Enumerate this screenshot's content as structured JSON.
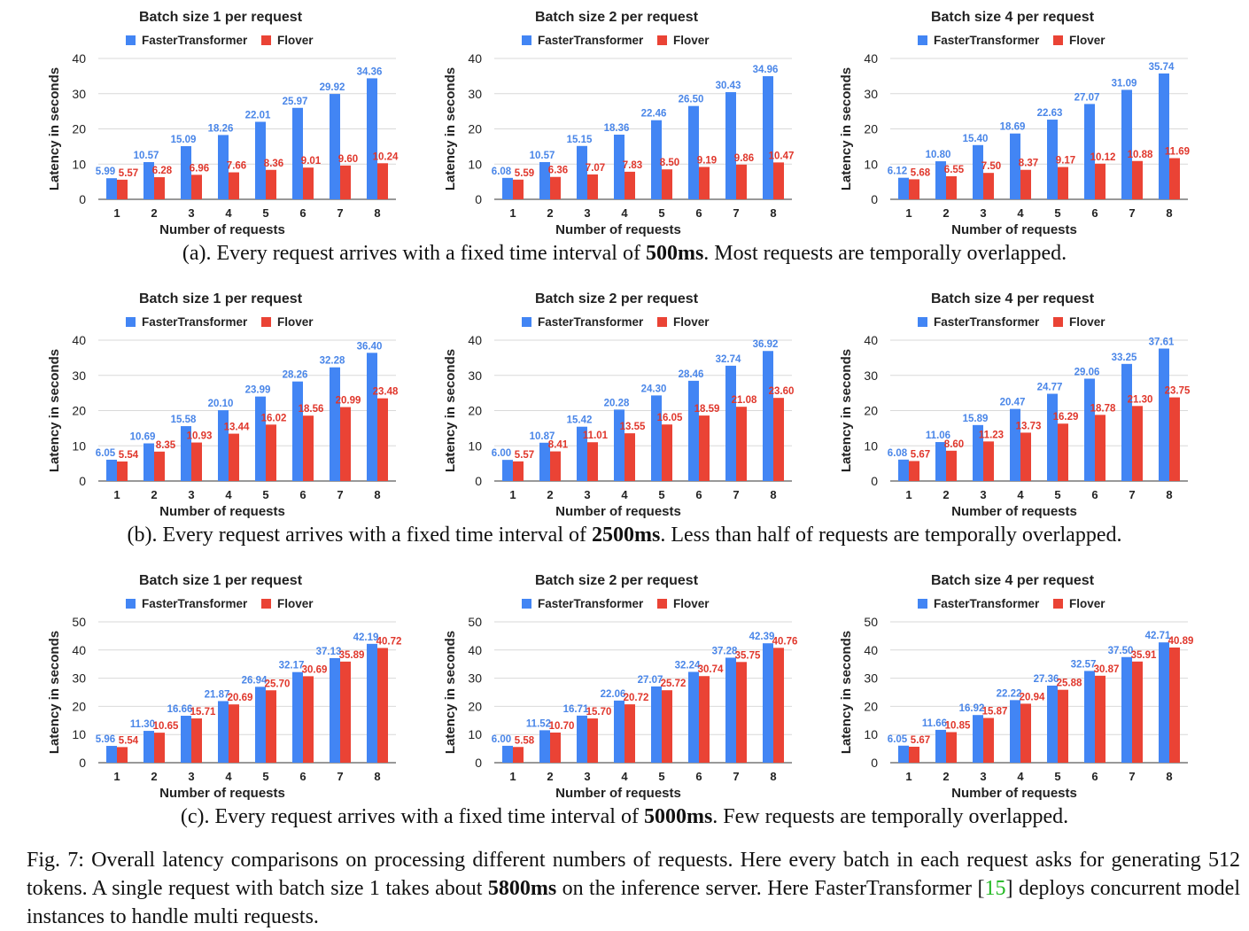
{
  "colors": {
    "fastertransformer": "#4285f4",
    "flover": "#ea4335",
    "grid": "#d9d9d9"
  },
  "legend": [
    "FasterTransformer",
    "Flover"
  ],
  "chart_data": [
    {
      "type": "bar",
      "row": "a",
      "title": "Batch size 1 per request",
      "xlabel": "Number of requests",
      "ylabel": "Latency in seconds",
      "ylim": [
        0,
        40
      ],
      "yticks": [
        0,
        10,
        20,
        30,
        40
      ],
      "categories": [
        "1",
        "2",
        "3",
        "4",
        "5",
        "6",
        "7",
        "8"
      ],
      "series": [
        {
          "name": "FasterTransformer",
          "values": [
            5.99,
            10.57,
            15.09,
            18.26,
            22.01,
            25.97,
            29.92,
            34.36
          ]
        },
        {
          "name": "Flover",
          "values": [
            5.57,
            6.28,
            6.96,
            7.66,
            8.36,
            9.01,
            9.6,
            10.24
          ]
        }
      ]
    },
    {
      "type": "bar",
      "row": "a",
      "title": "Batch size 2 per request",
      "xlabel": "Number of requests",
      "ylabel": "Latency in seconds",
      "ylim": [
        0,
        40
      ],
      "yticks": [
        0,
        10,
        20,
        30,
        40
      ],
      "categories": [
        "1",
        "2",
        "3",
        "4",
        "5",
        "6",
        "7",
        "8"
      ],
      "series": [
        {
          "name": "FasterTransformer",
          "values": [
            6.08,
            10.57,
            15.15,
            18.36,
            22.46,
            26.5,
            30.43,
            34.96
          ]
        },
        {
          "name": "Flover",
          "values": [
            5.59,
            6.36,
            7.07,
            7.83,
            8.5,
            9.19,
            9.86,
            10.47
          ]
        }
      ]
    },
    {
      "type": "bar",
      "row": "a",
      "title": "Batch size 4 per request",
      "xlabel": "Number of requests",
      "ylabel": "Latency in seconds",
      "ylim": [
        0,
        40
      ],
      "yticks": [
        0,
        10,
        20,
        30,
        40
      ],
      "categories": [
        "1",
        "2",
        "3",
        "4",
        "5",
        "6",
        "7",
        "8"
      ],
      "series": [
        {
          "name": "FasterTransformer",
          "values": [
            6.12,
            10.8,
            15.4,
            18.69,
            22.63,
            27.07,
            31.09,
            35.74
          ]
        },
        {
          "name": "Flover",
          "values": [
            5.68,
            6.55,
            7.5,
            8.37,
            9.17,
            10.12,
            10.88,
            11.69
          ]
        }
      ]
    },
    {
      "type": "bar",
      "row": "b",
      "title": "Batch size 1 per request",
      "xlabel": "Number of requests",
      "ylabel": "Latency in seconds",
      "ylim": [
        0,
        40
      ],
      "yticks": [
        0,
        10,
        20,
        30,
        40
      ],
      "categories": [
        "1",
        "2",
        "3",
        "4",
        "5",
        "6",
        "7",
        "8"
      ],
      "series": [
        {
          "name": "FasterTransformer",
          "values": [
            6.05,
            10.69,
            15.58,
            20.1,
            23.99,
            28.26,
            32.28,
            36.4
          ]
        },
        {
          "name": "Flover",
          "values": [
            5.54,
            8.35,
            10.93,
            13.44,
            16.02,
            18.56,
            20.99,
            23.48
          ]
        }
      ]
    },
    {
      "type": "bar",
      "row": "b",
      "title": "Batch size 2 per request",
      "xlabel": "Number of requests",
      "ylabel": "Latency in seconds",
      "ylim": [
        0,
        40
      ],
      "yticks": [
        0,
        10,
        20,
        30,
        40
      ],
      "categories": [
        "1",
        "2",
        "3",
        "4",
        "5",
        "6",
        "7",
        "8"
      ],
      "series": [
        {
          "name": "FasterTransformer",
          "values": [
            6.0,
            10.87,
            15.42,
            20.28,
            24.3,
            28.46,
            32.74,
            36.92
          ]
        },
        {
          "name": "Flover",
          "values": [
            5.57,
            8.41,
            11.01,
            13.55,
            16.05,
            18.59,
            21.08,
            23.6
          ]
        }
      ]
    },
    {
      "type": "bar",
      "row": "b",
      "title": "Batch size 4 per request",
      "xlabel": "Number of requests",
      "ylabel": "Latency in seconds",
      "ylim": [
        0,
        40
      ],
      "yticks": [
        0,
        10,
        20,
        30,
        40
      ],
      "categories": [
        "1",
        "2",
        "3",
        "4",
        "5",
        "6",
        "7",
        "8"
      ],
      "series": [
        {
          "name": "FasterTransformer",
          "values": [
            6.08,
            11.06,
            15.89,
            20.47,
            24.77,
            29.06,
            33.25,
            37.61
          ]
        },
        {
          "name": "Flover",
          "values": [
            5.67,
            8.6,
            11.23,
            13.73,
            16.29,
            18.78,
            21.3,
            23.75
          ]
        }
      ]
    },
    {
      "type": "bar",
      "row": "c",
      "title": "Batch size 1 per request",
      "xlabel": "Number of requests",
      "ylabel": "Latency in seconds",
      "ylim": [
        0,
        50
      ],
      "yticks": [
        0,
        10,
        20,
        30,
        40,
        50
      ],
      "categories": [
        "1",
        "2",
        "3",
        "4",
        "5",
        "6",
        "7",
        "8"
      ],
      "series": [
        {
          "name": "FasterTransformer",
          "values": [
            5.96,
            11.3,
            16.66,
            21.87,
            26.94,
            32.17,
            37.13,
            42.19
          ]
        },
        {
          "name": "Flover",
          "values": [
            5.54,
            10.65,
            15.71,
            20.69,
            25.7,
            30.69,
            35.89,
            40.72
          ]
        }
      ]
    },
    {
      "type": "bar",
      "row": "c",
      "title": "Batch size 2 per request",
      "xlabel": "Number of requests",
      "ylabel": "Latency in seconds",
      "ylim": [
        0,
        50
      ],
      "yticks": [
        0,
        10,
        20,
        30,
        40,
        50
      ],
      "categories": [
        "1",
        "2",
        "3",
        "4",
        "5",
        "6",
        "7",
        "8"
      ],
      "series": [
        {
          "name": "FasterTransformer",
          "values": [
            6.0,
            11.52,
            16.71,
            22.06,
            27.07,
            32.24,
            37.28,
            42.39
          ]
        },
        {
          "name": "Flover",
          "values": [
            5.58,
            10.7,
            15.7,
            20.72,
            25.72,
            30.74,
            35.75,
            40.76
          ]
        }
      ]
    },
    {
      "type": "bar",
      "row": "c",
      "title": "Batch size 4 per request",
      "xlabel": "Number of requests",
      "ylabel": "Latency in seconds",
      "ylim": [
        0,
        50
      ],
      "yticks": [
        0,
        10,
        20,
        30,
        40,
        50
      ],
      "categories": [
        "1",
        "2",
        "3",
        "4",
        "5",
        "6",
        "7",
        "8"
      ],
      "series": [
        {
          "name": "FasterTransformer",
          "values": [
            6.05,
            11.66,
            16.92,
            22.22,
            27.36,
            32.57,
            37.5,
            42.71
          ]
        },
        {
          "name": "Flover",
          "values": [
            5.67,
            10.85,
            15.87,
            20.94,
            25.88,
            30.87,
            35.91,
            40.89
          ]
        }
      ]
    }
  ],
  "subcaptions": {
    "a": {
      "prefix": "(a). Every request arrives with a fixed time interval of ",
      "bold": "500ms",
      "suffix": ". Most requests are temporally overlapped."
    },
    "b": {
      "prefix": "(b). Every request arrives with a fixed time interval of ",
      "bold": "2500ms",
      "suffix": ". Less than half of requests are temporally overlapped."
    },
    "c": {
      "prefix": "(c). Every request arrives with a fixed time interval of ",
      "bold": "5000ms",
      "suffix": ". Few requests are temporally overlapped."
    }
  },
  "caption": {
    "part1": "Fig. 7: Overall latency comparisons on processing different numbers of requests. Here every batch in each request asks for generating 512 tokens. A single request with batch size 1 takes about ",
    "bold": "5800ms",
    "part2": " on the inference server. Here FasterTransformer [",
    "ref": "15",
    "part3": "] deploys concurrent model instances to handle multi requests."
  }
}
